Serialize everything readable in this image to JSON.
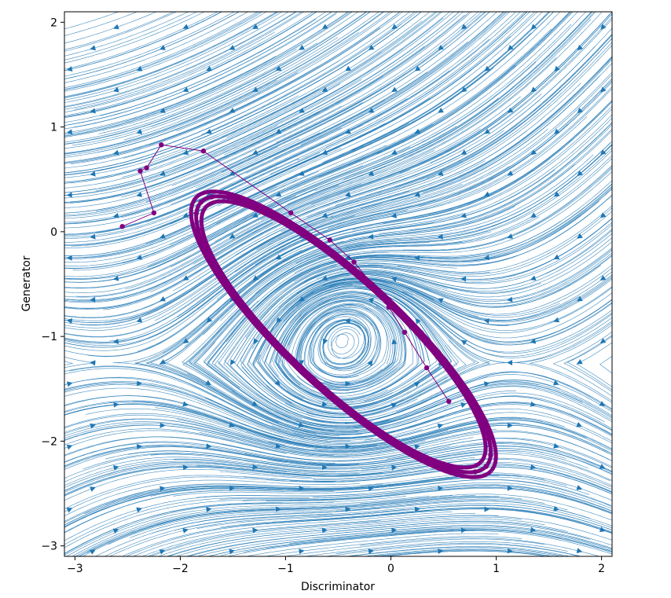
{
  "chart_data": {
    "type": "streamplot",
    "xlabel": "Discriminator",
    "ylabel": "Generator",
    "xlim": [
      -3.1,
      2.1
    ],
    "ylim": [
      -3.1,
      2.1
    ],
    "x_ticks": [
      -3,
      -2,
      -1,
      0,
      1,
      2
    ],
    "x_tick_labels": [
      "−3",
      "−2",
      "−1",
      "0",
      "1",
      "2"
    ],
    "y_ticks": [
      2,
      1,
      0,
      -1,
      -2,
      -3
    ],
    "y_tick_labels": [
      "2",
      "1",
      "0",
      "−1",
      "−2",
      "−3"
    ],
    "grid": false,
    "legend": null,
    "colors": {
      "stream": "#1f77b4",
      "trajectory": "#800080"
    },
    "field_center": [
      -0.45,
      -1.05
    ],
    "trajectory": {
      "start_points": [
        [
          -2.55,
          0.05
        ],
        [
          -2.25,
          0.18
        ],
        [
          -2.38,
          0.58
        ],
        [
          -2.32,
          0.61
        ],
        [
          -2.18,
          0.83
        ],
        [
          -1.78,
          0.77
        ],
        [
          -0.95,
          0.18
        ],
        [
          -0.58,
          -0.08
        ],
        [
          -0.35,
          -0.29
        ],
        [
          -0.18,
          -0.5
        ],
        [
          -0.02,
          -0.72
        ],
        [
          0.13,
          -0.96
        ],
        [
          0.34,
          -1.3
        ],
        [
          0.55,
          -1.62
        ]
      ],
      "limit_cycle": {
        "center": [
          -0.45,
          -0.98
        ],
        "semi_major": 1.85,
        "semi_minor": 0.52,
        "rotation_deg": -43
      }
    }
  }
}
